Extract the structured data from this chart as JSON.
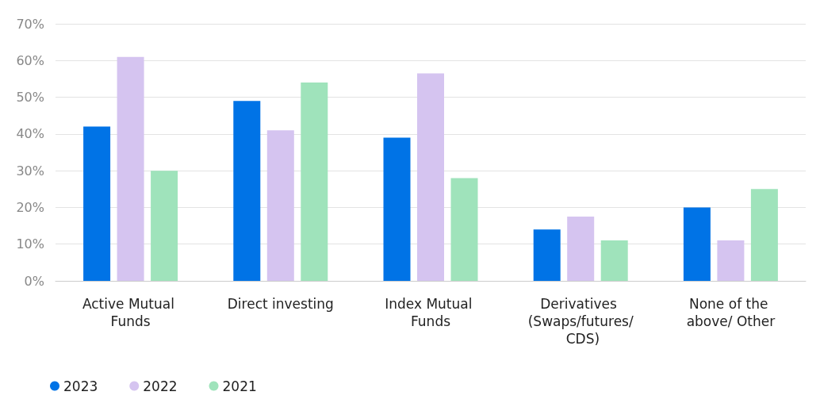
{
  "chart_data": {
    "type": "bar",
    "categories": [
      "Active Mutual Funds",
      "Direct investing",
      "Index Mutual Funds",
      "Derivatives (Swaps/futures/ CDS)",
      "None of the above/ Other"
    ],
    "series": [
      {
        "name": "2023",
        "color": "#0073e6",
        "values": [
          42,
          49,
          39,
          14,
          20
        ]
      },
      {
        "name": "2022",
        "color": "#d5c4f0",
        "values": [
          61,
          41,
          56.5,
          17.5,
          11
        ]
      },
      {
        "name": "2021",
        "color": "#9fe3bb",
        "values": [
          30,
          54,
          28,
          11,
          25
        ]
      }
    ],
    "ylim": [
      0,
      70
    ],
    "yticks": [
      {
        "value": 0,
        "label": "0%"
      },
      {
        "value": 10,
        "label": "10%"
      },
      {
        "value": 20,
        "label": "20%"
      },
      {
        "value": 30,
        "label": "30%"
      },
      {
        "value": 40,
        "label": "40%"
      },
      {
        "value": 50,
        "label": "50%"
      },
      {
        "value": 60,
        "label": "60%"
      },
      {
        "value": 70,
        "label": "70%"
      }
    ],
    "grid": "y",
    "legend": "bottom left"
  }
}
